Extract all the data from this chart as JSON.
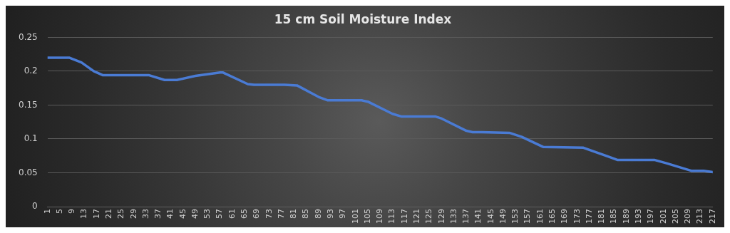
{
  "chart_data": {
    "type": "line",
    "title": "15 cm Soil Moisture Index",
    "xlim": [
      1,
      217
    ],
    "xticks": [
      1,
      5,
      9,
      13,
      17,
      21,
      25,
      29,
      33,
      37,
      41,
      45,
      49,
      53,
      57,
      61,
      65,
      69,
      73,
      77,
      81,
      85,
      89,
      93,
      97,
      101,
      105,
      109,
      113,
      117,
      121,
      125,
      129,
      133,
      137,
      141,
      145,
      149,
      153,
      157,
      161,
      165,
      169,
      173,
      177,
      181,
      185,
      189,
      193,
      197,
      201,
      205,
      209,
      213,
      217
    ],
    "ylim": [
      0,
      0.25
    ],
    "yticks": [
      0,
      0.05,
      0.1,
      0.15,
      0.2,
      0.25
    ],
    "grid": "y",
    "legend": false,
    "marker": "none",
    "line_style": "solid",
    "series": [
      {
        "color": "#4a7bd4",
        "x": [
          1,
          8,
          12,
          16,
          19,
          34,
          39,
          43,
          49,
          57,
          58,
          66,
          68,
          78,
          82,
          89,
          92,
          103,
          105,
          113,
          116,
          127,
          129,
          137,
          139,
          142,
          151,
          155,
          162,
          175,
          183,
          186,
          198,
          202,
          210,
          214,
          217
        ],
        "values": [
          0.22,
          0.22,
          0.213,
          0.2,
          0.194,
          0.194,
          0.187,
          0.187,
          0.193,
          0.198,
          0.198,
          0.181,
          0.18,
          0.18,
          0.179,
          0.162,
          0.157,
          0.157,
          0.155,
          0.137,
          0.133,
          0.133,
          0.13,
          0.112,
          0.11,
          0.11,
          0.109,
          0.103,
          0.088,
          0.087,
          0.074,
          0.069,
          0.069,
          0.064,
          0.053,
          0.053,
          0.051
        ]
      }
    ]
  }
}
